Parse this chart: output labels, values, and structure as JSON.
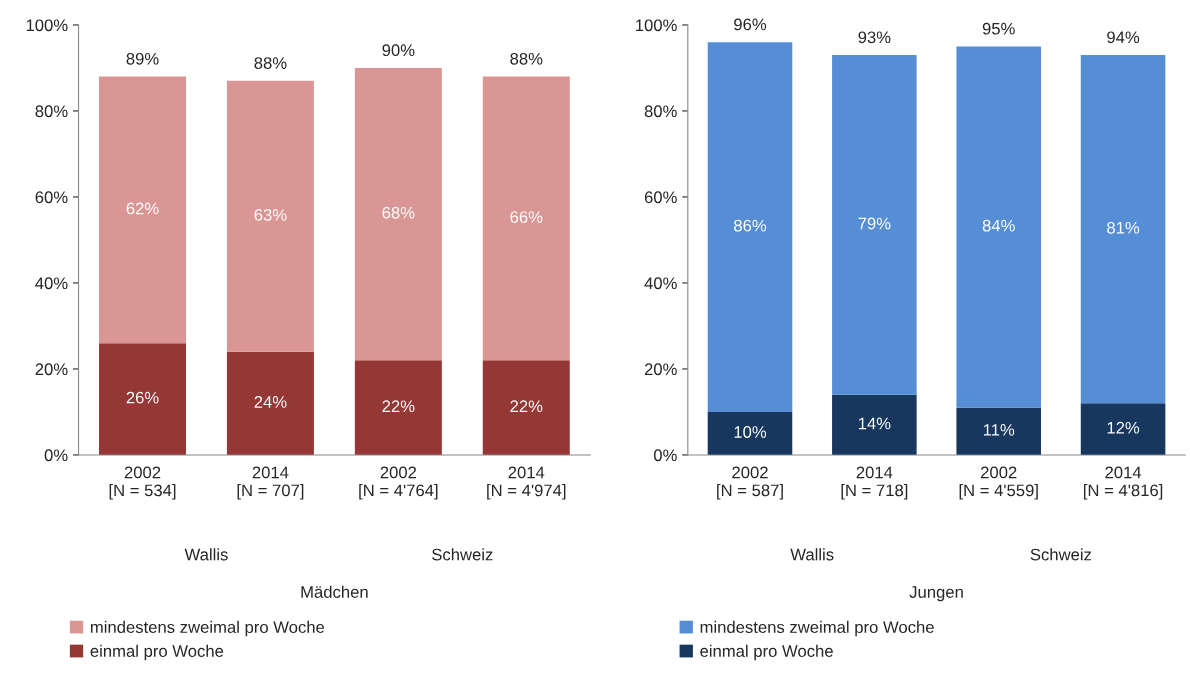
{
  "chart_data": [
    {
      "type": "bar",
      "stacked": true,
      "xlabel": "Mädchen",
      "categories": [
        "2002\n[N = 534]",
        "2014\n[N = 707]",
        "2002\n[N = 4'764]",
        "2014\n[N = 4'974]"
      ],
      "annotations": [
        "Wallis",
        "Schweiz"
      ],
      "series": [
        {
          "name": "einmal pro Woche",
          "color": "#953735",
          "values": [
            26,
            24,
            22,
            22
          ]
        },
        {
          "name": "mindestens zweimal pro Woche",
          "color": "#d99694",
          "values": [
            62,
            63,
            68,
            66
          ]
        }
      ],
      "totals": [
        "89%",
        "88%",
        "90%",
        "88%"
      ],
      "value_labels": [
        [
          "26%",
          "24%",
          "22%",
          "22%"
        ],
        [
          "62%",
          "63%",
          "68%",
          "66%"
        ]
      ],
      "ylim": [
        0,
        100
      ],
      "yticks": [
        {
          "value": 0,
          "label": "0%"
        },
        {
          "value": 20,
          "label": "20%"
        },
        {
          "value": 40,
          "label": "40%"
        },
        {
          "value": 60,
          "label": "60%"
        },
        {
          "value": 80,
          "label": "80%"
        },
        {
          "value": 100,
          "label": "100%"
        }
      ],
      "grid": false,
      "legend": "bottom"
    },
    {
      "type": "bar",
      "stacked": true,
      "xlabel": "Jungen",
      "categories": [
        "2002\n[N = 587]",
        "2014\n[N = 718]",
        "2002\n[N = 4'559]",
        "2014\n[N = 4'816]"
      ],
      "annotations": [
        "Wallis",
        "Schweiz"
      ],
      "series": [
        {
          "name": "einmal pro Woche",
          "color": "#17375e",
          "values": [
            10,
            14,
            11,
            12
          ]
        },
        {
          "name": "mindestens zweimal pro Woche",
          "color": "#558ed5",
          "values": [
            86,
            79,
            84,
            81
          ]
        }
      ],
      "totals": [
        "96%",
        "93%",
        "95%",
        "94%"
      ],
      "value_labels": [
        [
          "10%",
          "14%",
          "11%",
          "12%"
        ],
        [
          "86%",
          "79%",
          "84%",
          "81%"
        ]
      ],
      "ylim": [
        0,
        100
      ],
      "yticks": [
        {
          "value": 0,
          "label": "0%"
        },
        {
          "value": 20,
          "label": "20%"
        },
        {
          "value": 40,
          "label": "40%"
        },
        {
          "value": 60,
          "label": "60%"
        },
        {
          "value": 80,
          "label": "80%"
        },
        {
          "value": 100,
          "label": "100%"
        }
      ],
      "grid": false,
      "legend": "bottom"
    }
  ]
}
